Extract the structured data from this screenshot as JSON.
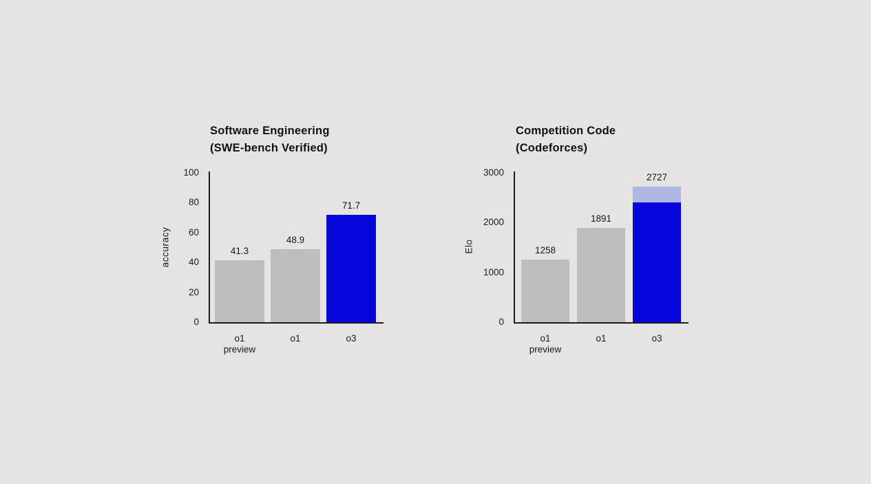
{
  "canvas": {
    "background": "#e5e4e2"
  },
  "colors": {
    "gray": "#bfbebd",
    "blue": "#0505dc",
    "blue_light": "#aeb6e3",
    "axis": "#1c1c1c",
    "text": "#1a1a1a"
  },
  "chart_data": [
    {
      "type": "bar",
      "title_lines": [
        "Software Engineering",
        "(SWE-bench Verified)"
      ],
      "ylabel": "accuracy",
      "ylim": [
        0,
        100
      ],
      "yticks": [
        0,
        20,
        40,
        60,
        80,
        100
      ],
      "grid": false,
      "legend": "none",
      "categories": [
        "o1\npreview",
        "o1",
        "o3"
      ],
      "series": [
        {
          "name": "accuracy",
          "values": [
            41.3,
            48.9,
            71.7
          ],
          "labels": [
            "41.3",
            "48.9",
            "71.7"
          ],
          "colors": [
            "gray",
            "gray",
            "blue"
          ],
          "overlays": [
            null,
            null,
            null
          ]
        }
      ]
    },
    {
      "type": "bar",
      "title_lines": [
        "Competition Code",
        "(Codeforces)"
      ],
      "ylabel": "Elo",
      "ylim": [
        0,
        3000
      ],
      "yticks": [
        0,
        1000,
        2000,
        3000
      ],
      "grid": false,
      "legend": "none",
      "categories": [
        "o1\npreview",
        "o1",
        "o3"
      ],
      "series": [
        {
          "name": "Elo",
          "values": [
            1258,
            1891,
            2727
          ],
          "labels": [
            "1258",
            "1891",
            "2727"
          ],
          "colors": [
            "gray",
            "gray",
            "blue"
          ],
          "overlays": [
            null,
            null,
            {
              "from": 2400,
              "to": 2727,
              "color": "blue_light"
            }
          ]
        }
      ]
    }
  ]
}
